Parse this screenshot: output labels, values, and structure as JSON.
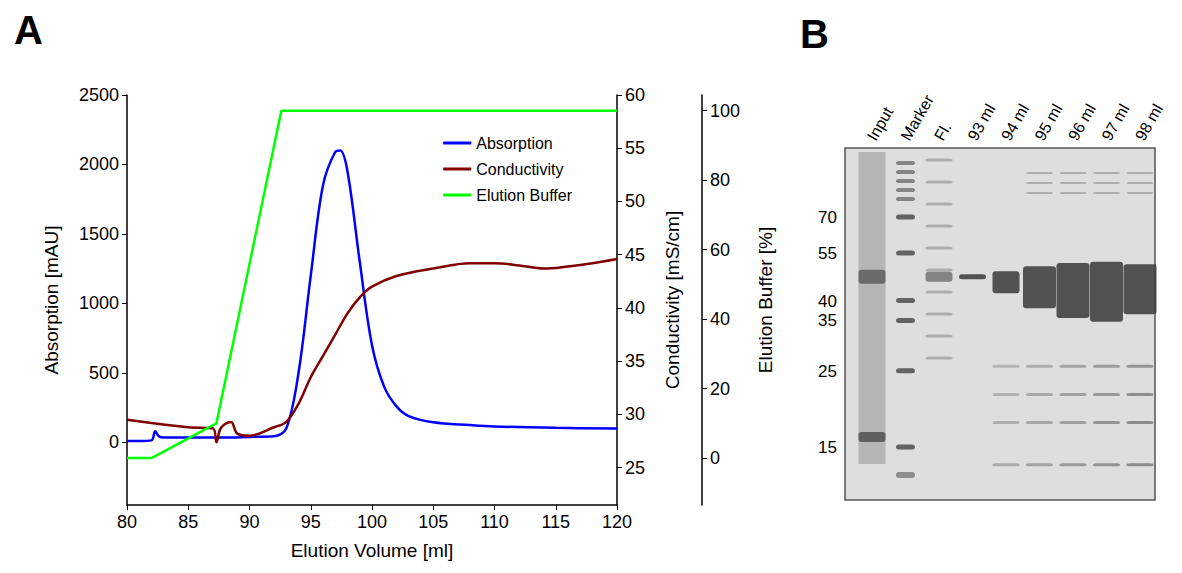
{
  "chart_data": {
    "type": "line",
    "panel": "A",
    "x_label": "Elution Volume [ml]",
    "y_label": "Absorption [mAU]",
    "y2_label": "Conductivity [mS/cm]",
    "y3_label": "Elution Buffer [%]",
    "xlim": [
      80,
      120
    ],
    "xticks": [
      80,
      85,
      90,
      95,
      100,
      105,
      110,
      115,
      120
    ],
    "ylim": [
      -450,
      2500
    ],
    "yticks": [
      0,
      500,
      1000,
      1500,
      2000,
      2500
    ],
    "y2lim": [
      21.5,
      60
    ],
    "y2ticks": [
      25,
      30,
      35,
      40,
      45,
      50,
      55,
      60
    ],
    "y3lim": [
      -13.5,
      104.5
    ],
    "y3ticks": [
      0,
      20,
      40,
      60,
      80,
      100
    ],
    "legend": "upper right",
    "grid": false,
    "series": [
      {
        "name": "Absorption",
        "color": "#0000ff",
        "axis": "y",
        "line_style": "smooth",
        "x": [
          80,
          81,
          82,
          82.3,
          82.6,
          83,
          85,
          88,
          90,
          92,
          93,
          94,
          95,
          96,
          97,
          97.4,
          98,
          99,
          100,
          101,
          102,
          103,
          105,
          108,
          110,
          115,
          120
        ],
        "values": [
          10,
          10,
          15,
          80,
          45,
          35,
          35,
          35,
          40,
          45,
          100,
          500,
          1200,
          1850,
          2090,
          2100,
          1950,
          1300,
          700,
          400,
          260,
          190,
          145,
          125,
          115,
          105,
          100
        ]
      },
      {
        "name": "Conductivity",
        "color": "#800000",
        "axis": "y2",
        "line_style": "smooth",
        "x": [
          80,
          82,
          85,
          87,
          87.3,
          87.6,
          88,
          88.5,
          89,
          90,
          92,
          93,
          94,
          95,
          96,
          97,
          98,
          99,
          100,
          102,
          105,
          108,
          110,
          112,
          114,
          116,
          118,
          120
        ],
        "values": [
          29.5,
          29.2,
          28.8,
          28.7,
          27.4,
          28.6,
          29.1,
          29.3,
          28.2,
          28.0,
          28.8,
          29.3,
          31.0,
          33.5,
          35.5,
          37.5,
          39.5,
          41.0,
          42.0,
          43.0,
          43.7,
          44.2,
          44.2,
          44.0,
          43.7,
          43.9,
          44.2,
          44.6
        ]
      },
      {
        "name": "Elution Buffer",
        "color": "#00ff00",
        "axis": "y3",
        "line_style": "solid",
        "x": [
          80,
          82,
          87.3,
          92.6,
          120
        ],
        "values": [
          0,
          0,
          10,
          100,
          100
        ]
      }
    ]
  },
  "gel": {
    "panel": "B",
    "lanes": [
      "Input",
      "Marker",
      "Fl.",
      "93 ml",
      "94 ml",
      "95 ml",
      "96 ml",
      "97 ml",
      "98 ml"
    ],
    "marker_kda": [
      70,
      55,
      40,
      35,
      25,
      15
    ]
  }
}
